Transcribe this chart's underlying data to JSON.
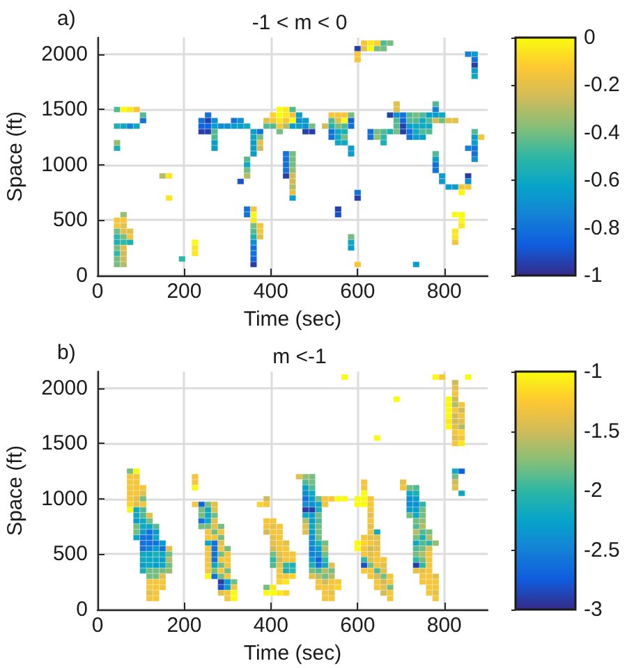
{
  "chart_data": [
    {
      "type": "scatter",
      "title": "-1 < m < 0",
      "xlabel": "Time (sec)",
      "ylabel": "Space (ft)",
      "annotations": [
        "a)"
      ],
      "marker": "square",
      "grid": true,
      "xlim": [
        0,
        900
      ],
      "ylim": [
        0,
        2150
      ],
      "xticks": [
        0,
        200,
        400,
        600,
        800
      ],
      "yticks": [
        0,
        500,
        1000,
        1500,
        2000
      ],
      "clim": [
        -1,
        0
      ],
      "cticks": [
        -1,
        -0.8,
        -0.6,
        -0.4,
        -0.2,
        0
      ],
      "x": [
        45,
        60,
        75,
        90,
        105,
        105,
        45,
        60,
        75,
        90,
        45,
        45,
        150,
        165,
        165,
        60,
        45,
        60,
        45,
        60,
        45,
        60,
        75,
        45,
        60,
        75,
        45,
        60,
        75,
        45,
        60,
        45,
        60,
        45,
        60,
        45,
        60,
        195,
        225,
        225,
        225,
        255,
        240,
        255,
        270,
        240,
        255,
        270,
        285,
        300,
        240,
        255,
        270,
        270,
        270,
        270,
        315,
        330,
        315,
        330,
        345,
        360,
        375,
        360,
        375,
        360,
        375,
        360,
        375,
        360,
        345,
        345,
        345,
        345,
        330,
        345,
        345,
        360,
        360,
        360,
        360,
        375,
        360,
        375,
        360,
        375,
        360,
        360,
        360,
        360,
        360,
        390,
        405,
        405,
        390,
        405,
        435,
        435,
        435,
        435,
        435,
        450,
        450,
        450,
        450,
        450,
        450,
        450,
        450,
        450,
        420,
        435,
        450,
        420,
        435,
        450,
        465,
        420,
        435,
        450,
        465,
        480,
        420,
        435,
        450,
        465,
        480,
        495,
        420,
        480,
        495,
        525,
        540,
        555,
        570,
        585,
        540,
        555,
        570,
        585,
        540,
        555,
        570,
        585,
        540,
        555,
        570,
        540,
        555,
        570,
        555,
        570,
        585,
        585,
        630,
        630,
        645,
        660,
        675,
        645,
        660,
        660,
        675,
        690,
        690,
        690,
        690,
        690,
        690,
        705,
        705,
        705,
        705,
        720,
        720,
        720,
        720,
        720,
        735,
        735,
        735,
        735,
        735,
        750,
        750,
        750,
        750,
        750,
        765,
        765,
        765,
        765,
        780,
        780,
        780,
        780,
        795,
        795,
        810,
        825,
        780,
        780,
        780,
        780,
        795,
        795,
        810,
        825,
        840,
        855,
        840,
        855,
        855,
        870,
        870,
        870,
        870,
        870,
        870,
        885,
        855,
        855,
        870,
        870,
        870,
        870,
        870,
        600,
        600,
        600,
        615,
        630,
        645,
        660,
        615,
        630,
        645,
        660,
        675,
        600,
        600,
        555,
        555,
        585,
        585,
        585,
        600,
        735,
        825,
        840,
        840,
        840,
        825,
        825,
        825
      ],
      "values": [
        1500,
        1500,
        1500,
        1500,
        1450,
        1400,
        1350,
        1350,
        1350,
        1350,
        1200,
        1150,
        900,
        900,
        700,
        550,
        500,
        500,
        450,
        450,
        400,
        400,
        400,
        350,
        350,
        350,
        300,
        300,
        300,
        250,
        250,
        200,
        200,
        150,
        150,
        100,
        100,
        150,
        300,
        250,
        200,
        1450,
        1400,
        1400,
        1400,
        1350,
        1350,
        1350,
        1350,
        1350,
        1300,
        1300,
        1300,
        1250,
        1200,
        1150,
        1400,
        1400,
        1350,
        1350,
        1350,
        1300,
        1300,
        1250,
        1250,
        1200,
        1200,
        1150,
        1150,
        1100,
        1050,
        1000,
        950,
        900,
        850,
        600,
        550,
        600,
        550,
        500,
        450,
        450,
        400,
        400,
        350,
        350,
        300,
        250,
        200,
        150,
        100,
        1400,
        1450,
        1400,
        1350,
        1350,
        1100,
        1050,
        1000,
        950,
        900,
        1100,
        1050,
        1000,
        950,
        900,
        850,
        800,
        750,
        700,
        1500,
        1500,
        1500,
        1450,
        1450,
        1450,
        1450,
        1400,
        1400,
        1400,
        1400,
        1400,
        1350,
        1350,
        1350,
        1350,
        1350,
        1350,
        1300,
        1300,
        1300,
        1350,
        1450,
        1450,
        1450,
        1450,
        1400,
        1400,
        1400,
        1400,
        1350,
        1350,
        1350,
        1350,
        1300,
        1300,
        1300,
        1250,
        1250,
        1250,
        1200,
        1200,
        1150,
        1100,
        1300,
        1250,
        1300,
        1300,
        1300,
        1250,
        1250,
        1200,
        1450,
        1550,
        1500,
        1450,
        1400,
        1350,
        1300,
        1450,
        1400,
        1350,
        1300,
        1450,
        1400,
        1350,
        1300,
        1250,
        1450,
        1400,
        1350,
        1300,
        1250,
        1450,
        1400,
        1350,
        1300,
        1250,
        1450,
        1400,
        1350,
        1300,
        1550,
        1500,
        1450,
        1400,
        1450,
        1400,
        1400,
        1400,
        1100,
        1050,
        1000,
        950,
        900,
        850,
        800,
        800,
        800,
        800,
        750,
        900,
        850,
        1300,
        1250,
        1200,
        1150,
        1100,
        1050,
        1250,
        1150,
        2000,
        2000,
        1950,
        1900,
        1850,
        1800,
        2050,
        2000,
        1950,
        2050,
        2050,
        2050,
        2050,
        2100,
        2100,
        2100,
        2100,
        2100,
        750,
        700,
        600,
        550,
        350,
        300,
        250,
        100,
        100,
        550,
        550,
        500,
        450,
        400,
        350,
        300
      ],
      "cvalues": [
        -0.45,
        0,
        -0.05,
        -0.15,
        -0.45,
        -0.8,
        -0.55,
        -0.6,
        -0.75,
        -0.6,
        -0.35,
        -0.55,
        -0.3,
        -0.05,
        -0.05,
        -0.35,
        -0.15,
        -0.15,
        -0.15,
        -0.2,
        -0.4,
        -0.2,
        -0.2,
        -0.5,
        -0.4,
        -0.15,
        -0.55,
        -0.5,
        -0.55,
        -0.4,
        -0.2,
        -0.5,
        -0.25,
        -0.4,
        -0.25,
        -0.4,
        -0.3,
        -0.5,
        0,
        -0.05,
        -0.05,
        -0.8,
        -0.8,
        -0.95,
        -0.7,
        -0.85,
        -0.85,
        -0.65,
        -0.7,
        -0.7,
        -0.95,
        -0.95,
        -0.45,
        -0.45,
        -0.65,
        -0.65,
        -0.8,
        -0.7,
        -0.65,
        -0.65,
        -0.6,
        -0.65,
        -0.8,
        -0.6,
        -0.4,
        -0.65,
        -0.2,
        -0.65,
        -0.25,
        -0.65,
        -0.45,
        -0.6,
        -0.4,
        -0.3,
        -0.9,
        -0.8,
        -0.8,
        -0.15,
        0,
        -0.05,
        -0.4,
        -0.15,
        -0.45,
        -0.15,
        -0.55,
        -0.2,
        -0.7,
        -0.8,
        -0.8,
        -0.85,
        -0.95,
        -0.2,
        -0.1,
        -0.15,
        -0.45,
        -0.45,
        -0.8,
        -0.8,
        -0.8,
        -0.8,
        -0.95,
        -0.4,
        -0.4,
        -0.4,
        -0.35,
        -0.25,
        -0.25,
        -0.3,
        -0.2,
        -0.65,
        0,
        -0.05,
        -0.45,
        0,
        -0.05,
        -0.15,
        -0.65,
        -0.05,
        -0.15,
        0,
        -0.7,
        -0.65,
        -0.15,
        -0.3,
        -0.65,
        -0.65,
        -0.7,
        -0.4,
        -0.4,
        -0.95,
        -0.95,
        -0.25,
        -0.15,
        -0.15,
        -0.15,
        -0.4,
        -0.45,
        -0.2,
        0,
        -0.85,
        -0.55,
        -0.4,
        -0.45,
        -0.8,
        -0.8,
        -0.6,
        -0.55,
        -0.8,
        -0.6,
        -0.4,
        -0.6,
        -0.6,
        -0.65,
        -0.65,
        -0.8,
        -0.8,
        -0.4,
        -0.45,
        -0.55,
        -0.35,
        -0.5,
        -0.55,
        -0.95,
        -0.2,
        -0.2,
        -0.7,
        -0.45,
        -0.45,
        -0.4,
        -0.8,
        -0.85,
        -0.95,
        -0.95,
        -0.45,
        -0.45,
        -0.65,
        -0.8,
        -0.8,
        -0.4,
        -0.45,
        -0.6,
        -0.6,
        -0.65,
        -0.45,
        -0.6,
        -0.6,
        -0.45,
        -0.65,
        -0.65,
        -0.45,
        -0.6,
        -0.45,
        -0.45,
        -0.75,
        -0.65,
        -0.25,
        -0.6,
        -0.4,
        -0.2,
        -0.2,
        -0.45,
        -0.65,
        -0.8,
        -0.8,
        -0.65,
        -0.65,
        -0.65,
        -0.65,
        -0.15,
        -0.15,
        0,
        -0.95,
        -0.7,
        -0.45,
        -0.65,
        -0.65,
        -0.8,
        -0.8,
        -0.7,
        -0.15,
        -0.75,
        -0.75,
        -0.65,
        -0.8,
        -0.95,
        -0.65,
        -0.6,
        -0.95,
        -0.15,
        -0.15,
        -0.2,
        0,
        -0.4,
        -0.4,
        -0.15,
        -0.05,
        -0.1,
        -0.45,
        -0.4,
        -0.8,
        -0.95,
        -0.95,
        -0.9,
        -0.4,
        -0.6,
        -0.65,
        -0.15,
        -0.65,
        0,
        0,
        0,
        -0.05,
        -0.05,
        -0.05,
        -0.15
      ]
    },
    {
      "type": "scatter",
      "title": "m <-1",
      "xlabel": "Time (sec)",
      "ylabel": "Space (ft)",
      "annotations": [
        "b)"
      ],
      "marker": "square",
      "grid": true,
      "xlim": [
        0,
        900
      ],
      "ylim": [
        0,
        2150
      ],
      "xticks": [
        0,
        200,
        400,
        600,
        800
      ],
      "yticks": [
        0,
        500,
        1000,
        1500,
        2000
      ],
      "clim": [
        -3,
        -1
      ],
      "cticks": [
        -3,
        -2.5,
        -2,
        -1.5,
        -1
      ],
      "x": [
        75,
        90,
        75,
        90,
        75,
        90,
        75,
        90,
        105,
        75,
        90,
        105,
        75,
        90,
        105,
        75,
        90,
        105,
        75,
        90,
        105,
        90,
        105,
        120,
        90,
        105,
        120,
        90,
        105,
        120,
        135,
        90,
        105,
        120,
        135,
        90,
        105,
        120,
        135,
        105,
        120,
        135,
        150,
        105,
        120,
        135,
        150,
        165,
        105,
        120,
        135,
        150,
        165,
        105,
        120,
        135,
        150,
        165,
        105,
        120,
        135,
        150,
        165,
        105,
        120,
        135,
        150,
        165,
        120,
        135,
        150,
        120,
        135,
        150,
        120,
        135,
        150,
        120,
        135,
        120,
        135,
        225,
        225,
        225,
        225,
        240,
        255,
        270,
        240,
        255,
        270,
        240,
        255,
        270,
        240,
        255,
        270,
        240,
        255,
        270,
        285,
        255,
        270,
        285,
        255,
        270,
        285,
        255,
        270,
        285,
        255,
        270,
        285,
        300,
        255,
        270,
        285,
        300,
        255,
        270,
        285,
        300,
        255,
        270,
        285,
        300,
        255,
        270,
        285,
        300,
        255,
        270,
        285,
        300,
        285,
        300,
        315,
        285,
        300,
        315,
        285,
        300,
        315,
        300,
        315,
        375,
        390,
        390,
        390,
        405,
        390,
        405,
        420,
        390,
        405,
        420,
        405,
        420,
        405,
        420,
        435,
        405,
        420,
        435,
        405,
        420,
        435,
        450,
        405,
        420,
        435,
        450,
        405,
        420,
        435,
        450,
        420,
        435,
        450,
        420,
        435,
        450,
        420,
        435,
        390,
        405,
        390,
        405,
        420,
        435,
        465,
        480,
        495,
        480,
        495,
        480,
        495,
        480,
        495,
        480,
        495,
        510,
        525,
        540,
        555,
        570,
        480,
        495,
        510,
        525,
        480,
        495,
        510,
        480,
        495,
        510,
        480,
        495,
        510,
        480,
        495,
        510,
        480,
        495,
        510,
        495,
        510,
        495,
        510,
        525,
        495,
        510,
        525,
        495,
        510,
        525,
        495,
        510,
        525,
        495,
        510,
        525,
        540,
        495,
        510,
        525,
        540,
        495,
        510,
        525,
        540,
        510,
        525,
        540,
        555,
        510,
        525,
        540,
        555,
        525,
        540,
        525,
        540,
        615,
        615,
        615,
        600,
        615,
        630,
        600,
        615,
        630,
        630,
        630,
        630,
        630,
        630,
        645,
        615,
        630,
        645,
        600,
        615,
        630,
        645,
        600,
        615,
        630,
        645,
        615,
        630,
        645,
        615,
        630,
        645,
        660,
        615,
        630,
        645,
        660,
        615,
        630,
        645,
        660,
        630,
        645,
        660,
        675,
        645,
        660,
        675,
        645,
        660,
        675,
        660,
        675,
        675,
        705,
        705,
        720,
        735,
        720,
        735,
        720,
        735,
        720,
        735,
        750,
        720,
        735,
        750,
        720,
        735,
        750,
        735,
        750,
        735,
        750,
        735,
        750,
        765,
        735,
        750,
        765,
        735,
        750,
        765,
        780,
        735,
        750,
        765,
        735,
        750,
        765,
        735,
        750,
        765,
        735,
        750,
        765,
        735,
        750,
        765,
        750,
        765,
        780,
        750,
        765,
        780,
        765,
        780,
        765,
        780,
        780,
        810,
        810,
        810,
        810,
        810,
        810,
        825,
        825,
        825,
        825,
        825,
        825,
        825,
        825,
        825,
        825,
        825,
        825,
        840,
        840,
        840,
        840,
        840,
        840,
        840,
        840,
        780,
        795,
        855,
        570,
        690,
        645,
        825,
        840,
        825,
        825,
        825,
        840
      ],
      "values": [
        1250,
        1250,
        1200,
        1200,
        1150,
        1150,
        1100,
        1100,
        1100,
        1050,
        1050,
        1050,
        1000,
        1000,
        1000,
        950,
        950,
        950,
        900,
        900,
        900,
        850,
        850,
        850,
        800,
        800,
        800,
        750,
        750,
        750,
        750,
        700,
        700,
        700,
        700,
        650,
        650,
        650,
        650,
        600,
        600,
        600,
        600,
        550,
        550,
        550,
        550,
        550,
        500,
        500,
        500,
        500,
        500,
        450,
        450,
        450,
        450,
        450,
        400,
        400,
        400,
        400,
        400,
        350,
        350,
        350,
        350,
        350,
        300,
        300,
        300,
        250,
        250,
        250,
        200,
        200,
        200,
        150,
        150,
        100,
        100,
        1200,
        1150,
        1100,
        950,
        950,
        950,
        950,
        900,
        900,
        900,
        850,
        850,
        850,
        800,
        800,
        800,
        750,
        750,
        750,
        750,
        700,
        700,
        700,
        650,
        650,
        650,
        600,
        600,
        600,
        550,
        550,
        550,
        550,
        500,
        500,
        500,
        500,
        450,
        450,
        450,
        450,
        400,
        400,
        400,
        400,
        350,
        350,
        350,
        350,
        300,
        300,
        300,
        300,
        250,
        250,
        250,
        200,
        200,
        200,
        150,
        150,
        150,
        100,
        100,
        950,
        1000,
        950,
        800,
        800,
        750,
        750,
        750,
        700,
        700,
        700,
        650,
        650,
        600,
        600,
        600,
        550,
        550,
        550,
        500,
        500,
        500,
        500,
        450,
        450,
        450,
        450,
        400,
        400,
        400,
        400,
        350,
        350,
        350,
        300,
        300,
        300,
        250,
        250,
        200,
        200,
        150,
        150,
        150,
        150,
        1200,
        1200,
        1200,
        1150,
        1150,
        1100,
        1100,
        1050,
        1050,
        1000,
        1000,
        1000,
        1000,
        1000,
        1000,
        1000,
        950,
        950,
        950,
        950,
        900,
        900,
        900,
        850,
        850,
        850,
        800,
        800,
        800,
        750,
        750,
        750,
        700,
        700,
        700,
        650,
        650,
        600,
        600,
        600,
        550,
        550,
        550,
        500,
        500,
        500,
        450,
        450,
        450,
        400,
        400,
        400,
        400,
        350,
        350,
        350,
        350,
        300,
        300,
        300,
        300,
        250,
        250,
        250,
        250,
        200,
        200,
        200,
        200,
        150,
        150,
        100,
        100,
        1150,
        1100,
        1050,
        1000,
        1000,
        1000,
        950,
        950,
        950,
        900,
        850,
        800,
        750,
        700,
        700,
        650,
        650,
        650,
        600,
        600,
        600,
        600,
        550,
        550,
        550,
        550,
        500,
        500,
        500,
        450,
        450,
        450,
        450,
        400,
        400,
        400,
        400,
        350,
        350,
        350,
        350,
        300,
        300,
        300,
        300,
        250,
        250,
        250,
        200,
        200,
        200,
        150,
        150,
        100,
        1150,
        1100,
        1100,
        1100,
        1050,
        1050,
        1000,
        1000,
        950,
        950,
        950,
        900,
        900,
        900,
        850,
        850,
        850,
        800,
        800,
        750,
        750,
        700,
        700,
        700,
        650,
        650,
        650,
        600,
        600,
        600,
        600,
        550,
        550,
        550,
        500,
        500,
        500,
        450,
        450,
        450,
        400,
        400,
        400,
        350,
        350,
        350,
        300,
        300,
        300,
        250,
        250,
        250,
        200,
        200,
        150,
        150,
        100,
        1900,
        1850,
        1800,
        1750,
        1700,
        1650,
        2050,
        2000,
        1950,
        1900,
        1850,
        1800,
        1750,
        1700,
        1650,
        1600,
        1550,
        1500,
        1850,
        1800,
        1750,
        1700,
        1650,
        1600,
        1550,
        1500,
        2100,
        2100,
        2100,
        2100,
        1900,
        1550,
        1250,
        1250,
        1200,
        1150,
        1100,
        1050
      ],
      "cvalues": [
        -1.8,
        -1,
        -1.3,
        -1.3,
        -1.3,
        -1.3,
        -1.3,
        -1.3,
        -1.3,
        -1.3,
        -1.3,
        -1.4,
        -1.3,
        -1.4,
        -1.8,
        -1.2,
        -1.4,
        -1.3,
        -1,
        -2.2,
        -1.9,
        -2.2,
        -1.9,
        -1.4,
        -2.3,
        -2.2,
        -1.8,
        -1.8,
        -2.2,
        -2.2,
        -1.9,
        -1.8,
        -2.3,
        -2.6,
        -2.3,
        -2.2,
        -2.6,
        -2.6,
        -2.2,
        -2.6,
        -2.6,
        -2.6,
        -2.3,
        -2.6,
        -2.5,
        -2.3,
        -2.6,
        -1.4,
        -2.2,
        -2.2,
        -2.1,
        -2.2,
        -1.8,
        -2.2,
        -2.2,
        -2.2,
        -2.3,
        -1.6,
        -2.3,
        -2.2,
        -2.3,
        -2.2,
        -1.8,
        -2.1,
        -1.8,
        -1.8,
        -1.8,
        -1.7,
        -1.8,
        -1.8,
        -1.4,
        -1.3,
        -1.3,
        -1.3,
        -1.3,
        -1.3,
        -1.3,
        -1.4,
        -1.3,
        -1.3,
        -1.3,
        -1.3,
        -1.3,
        -1,
        -1.3,
        -2.7,
        -1.8,
        -1.4,
        -1.8,
        -2.2,
        -1.4,
        -1.8,
        -2.2,
        -1.8,
        -2.6,
        -2.2,
        -1.4,
        -1.8,
        -1.8,
        -1.4,
        -1.8,
        -1.3,
        -1.8,
        -1.3,
        -1.3,
        -1.3,
        -1.8,
        -2.2,
        -2.6,
        -1.4,
        -1.3,
        -2.6,
        -1.3,
        -1.8,
        -1.3,
        -2.6,
        -1.8,
        -1.3,
        -1.3,
        -2.6,
        -1.3,
        -1.3,
        -1.3,
        -2.2,
        -1.8,
        -1.3,
        -1.3,
        -1.8,
        -1.3,
        -1.8,
        -1,
        -2.6,
        -1.8,
        -1.3,
        -2.9,
        -2.3,
        -1.8,
        -2.8,
        -2.3,
        -1.3,
        -1.4,
        -1.3,
        -1,
        -1.3,
        -1,
        -1.2,
        -1.5,
        -1.3,
        -1.3,
        -1.3,
        -1.3,
        -1.4,
        -1.3,
        -1.5,
        -1.3,
        -1.3,
        -1.4,
        -1.3,
        -1.4,
        -1.3,
        -1.4,
        -1.5,
        -1.3,
        -1.3,
        -1.8,
        -1.4,
        -1.3,
        -1.3,
        -2,
        -1.5,
        -1.3,
        -1.3,
        -1.9,
        -1.4,
        -2,
        -2.1,
        -1.3,
        -2.1,
        -2,
        -1.3,
        -1.3,
        -1.2,
        -1.2,
        -1.1,
        -1.8,
        -1.1,
        -1,
        -1,
        -1.1,
        -1.2,
        -1.4,
        -1.7,
        -1.8,
        -1.9,
        -1.8,
        -2.3,
        -1.9,
        -2.4,
        -2.2,
        -2.6,
        -2.3,
        -1.8,
        -1.3,
        -1.3,
        -1,
        -1,
        -2.4,
        -2.4,
        -2.2,
        -1.3,
        -2.9,
        -2.9,
        -2.1,
        -2.2,
        -2.3,
        -1.8,
        -1.6,
        -2.3,
        -1.9,
        -1.4,
        -2.2,
        -1.8,
        -1.4,
        -2.3,
        -1.8,
        -2.4,
        -1.8,
        -2.4,
        -2.1,
        -1.8,
        -2.5,
        -2.3,
        -1.6,
        -2.5,
        -2.4,
        -1.8,
        -2.3,
        -2.7,
        -2,
        -2.1,
        -2.6,
        -2.2,
        -1.4,
        -1.8,
        -1.9,
        -1.6,
        -1.8,
        -1.4,
        -1.6,
        -1.8,
        -1.6,
        -1.3,
        -1.5,
        -1.3,
        -1.3,
        -1.3,
        -1.3,
        -1.3,
        -1.2,
        -1.3,
        -1.4,
        -1.3,
        -1.3,
        -1.3,
        -1.3,
        -1,
        -1,
        -1,
        -1.3,
        -1,
        -1,
        -1.3,
        -1.3,
        -1.4,
        -1.3,
        -1.4,
        -1.3,
        -2.2,
        -1.3,
        -1.4,
        -1.4,
        -1,
        -1.2,
        -1.3,
        -1.4,
        -1,
        -1.3,
        -1.5,
        -1.4,
        -1.3,
        -1.4,
        -1.3,
        -2,
        -1.4,
        -1.3,
        -1.3,
        -2.8,
        -1.8,
        -1.3,
        -1.4,
        -1.3,
        -1.3,
        -1.9,
        -1.4,
        -1.3,
        -1.5,
        -1.8,
        -1.3,
        -1.3,
        -1.5,
        -1.3,
        -1.3,
        -1.4,
        -1.8,
        -1.5,
        -1.3,
        -1.3,
        -1.4,
        -1.3,
        -1.8,
        -1.9,
        -2.2,
        -2.1,
        -2.4,
        -2.3,
        -2.4,
        -2.4,
        -2,
        -2.3,
        -2.3,
        -1.8,
        -1.8,
        -2.2,
        -1.8,
        -1.8,
        -1.7,
        -1.9,
        -1.6,
        -1.6,
        -1.9,
        -1.8,
        -1.8,
        -2.1,
        -1.6,
        -2.2,
        -1.9,
        -2,
        -1.7,
        -1.9,
        -1.8,
        -1.4,
        -1.8,
        -1.6,
        -1.3,
        -2,
        -1.8,
        -1.3,
        -2.9,
        -2,
        -1.3,
        -1.4,
        -1.4,
        -1.3,
        -1.3,
        -1.3,
        -1.4,
        -1.3,
        -1.3,
        -1.3,
        -1.3,
        -1.3,
        -1.3,
        -1.4,
        -1.3,
        -1,
        -1,
        -1,
        -1,
        -1.1,
        -1,
        -1.5,
        -1.4,
        -1.3,
        -1.5,
        -1.6,
        -1.3,
        -1.5,
        -1.5,
        -1.4,
        -1.3,
        -1.4,
        -1.3,
        -1.3,
        -1.5,
        -1.3,
        -1.4,
        -1.6,
        -1.2,
        -1.3,
        -1.1,
        -1,
        -1.3,
        -1,
        -1,
        -1,
        -1,
        -2.2,
        -2.7,
        -1.8,
        -1.5,
        -1.4,
        -2.2
      ]
    }
  ]
}
